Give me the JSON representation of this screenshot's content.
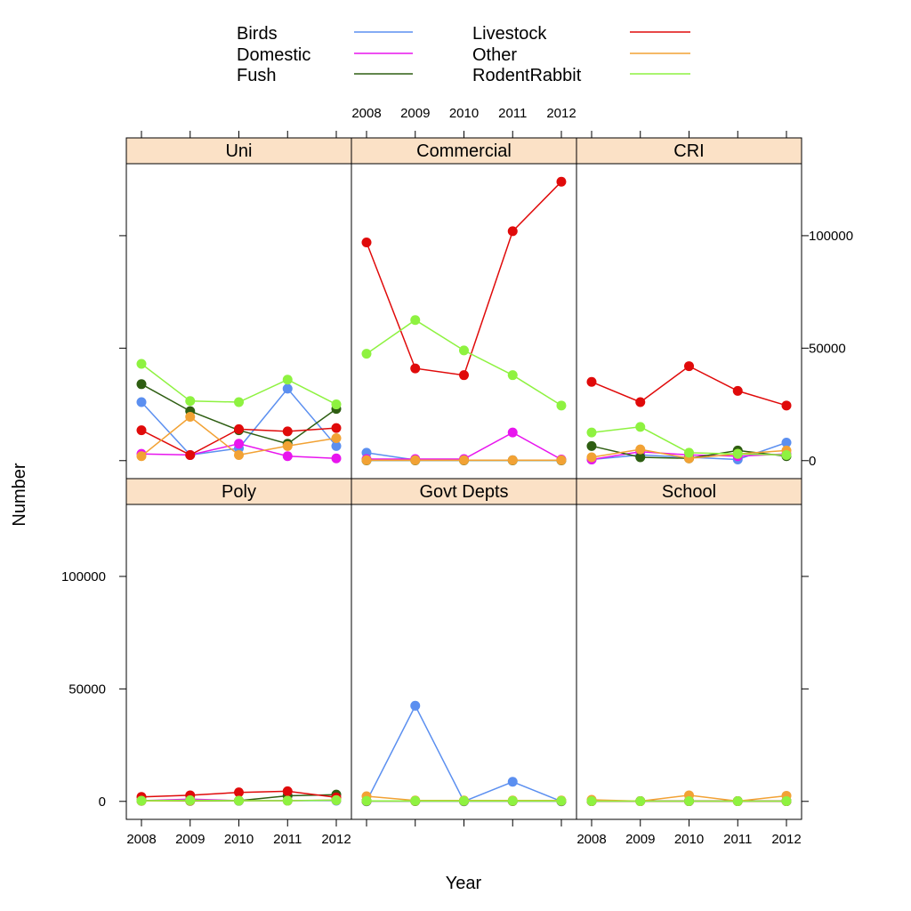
{
  "chart_data": {
    "type": "line",
    "xlabel": "Year",
    "ylabel": "Number",
    "x": [
      2008,
      2009,
      2010,
      2011,
      2012
    ],
    "x_tick_labels": [
      "2008",
      "2009",
      "2010",
      "2011",
      "2012"
    ],
    "ylim": [
      -8000,
      132000
    ],
    "y_ticks": [
      0,
      50000,
      100000
    ],
    "y_tick_labels": [
      "0",
      "50000",
      "100000"
    ],
    "grid": false,
    "legend_position": "top",
    "strip_color": "#fbe1c6",
    "series_colors": {
      "Birds": "#5b8ff0",
      "Domestic": "#e815ee",
      "Fush": "#2e5e12",
      "Livestock": "#e00a0a",
      "Other": "#f2a234",
      "RodentRabbit": "#8ef240"
    },
    "legend": [
      {
        "name": "Birds",
        "color": "#5b8ff0"
      },
      {
        "name": "Domestic",
        "color": "#e815ee"
      },
      {
        "name": "Fush",
        "color": "#2e5e12"
      },
      {
        "name": "Livestock",
        "color": "#e00a0a"
      },
      {
        "name": "Other",
        "color": "#f2a234"
      },
      {
        "name": "RodentRabbit",
        "color": "#8ef240"
      }
    ],
    "panels": [
      {
        "name": "Poly",
        "series": [
          {
            "name": "Birds",
            "values": [
              200,
              300,
              200,
              300,
              300
            ]
          },
          {
            "name": "Domestic",
            "values": [
              300,
              1000,
              300,
              300,
              500
            ]
          },
          {
            "name": "Fush",
            "values": [
              300,
              200,
              300,
              2500,
              3000
            ]
          },
          {
            "name": "Livestock",
            "values": [
              2000,
              2700,
              4000,
              4500,
              1800
            ]
          },
          {
            "name": "Other",
            "values": [
              200,
              300,
              300,
              300,
              600
            ]
          },
          {
            "name": "RodentRabbit",
            "values": [
              300,
              500,
              300,
              300,
              500
            ]
          }
        ]
      },
      {
        "name": "Govt Depts",
        "series": [
          {
            "name": "Birds",
            "values": [
              0,
              42500,
              0,
              8700,
              0
            ]
          },
          {
            "name": "Domestic",
            "values": [
              200,
              200,
              200,
              200,
              200
            ]
          },
          {
            "name": "Fush",
            "values": [
              100,
              100,
              100,
              100,
              100
            ]
          },
          {
            "name": "Livestock",
            "values": [
              200,
              200,
              200,
              200,
              200
            ]
          },
          {
            "name": "Other",
            "values": [
              2300,
              400,
              400,
              400,
              400
            ]
          },
          {
            "name": "RodentRabbit",
            "values": [
              200,
              200,
              200,
              200,
              200
            ]
          }
        ]
      },
      {
        "name": "School",
        "series": [
          {
            "name": "Birds",
            "values": [
              100,
              100,
              100,
              100,
              100
            ]
          },
          {
            "name": "Domestic",
            "values": [
              100,
              100,
              100,
              100,
              100
            ]
          },
          {
            "name": "Fush",
            "values": [
              100,
              100,
              100,
              100,
              100
            ]
          },
          {
            "name": "Livestock",
            "values": [
              100,
              100,
              100,
              100,
              100
            ]
          },
          {
            "name": "Other",
            "values": [
              700,
              100,
              2700,
              100,
              2500
            ]
          },
          {
            "name": "RodentRabbit",
            "values": [
              100,
              100,
              100,
              100,
              100
            ]
          }
        ]
      },
      {
        "name": "Uni",
        "series": [
          {
            "name": "Birds",
            "values": [
              26000,
              2500,
              5500,
              32000,
              6500
            ]
          },
          {
            "name": "Domestic",
            "values": [
              3000,
              2500,
              7500,
              2000,
              1000
            ]
          },
          {
            "name": "Fush",
            "values": [
              34000,
              22000,
              13500,
              7500,
              23000
            ]
          },
          {
            "name": "Livestock",
            "values": [
              13500,
              2500,
              14000,
              13000,
              14500
            ]
          },
          {
            "name": "Other",
            "values": [
              2000,
              19500,
              2500,
              6500,
              10000
            ]
          },
          {
            "name": "RodentRabbit",
            "values": [
              43000,
              26500,
              26000,
              36000,
              25000
            ]
          }
        ]
      },
      {
        "name": "Commercial",
        "series": [
          {
            "name": "Birds",
            "values": [
              3500,
              300,
              200,
              200,
              200
            ]
          },
          {
            "name": "Domestic",
            "values": [
              700,
              700,
              700,
              12500,
              500
            ]
          },
          {
            "name": "Fush",
            "values": [
              100,
              100,
              100,
              100,
              100
            ]
          },
          {
            "name": "Livestock",
            "values": [
              97000,
              41000,
              38000,
              102000,
              124000
            ]
          },
          {
            "name": "Other",
            "values": [
              200,
              200,
              200,
              200,
              200
            ]
          },
          {
            "name": "RodentRabbit",
            "values": [
              47500,
              62500,
              49000,
              38000,
              24500
            ]
          }
        ]
      },
      {
        "name": "CRI",
        "series": [
          {
            "name": "Birds",
            "values": [
              500,
              2500,
              1500,
              500,
              8000
            ]
          },
          {
            "name": "Domestic",
            "values": [
              500,
              4000,
              2500,
              2000,
              3000
            ]
          },
          {
            "name": "Fush",
            "values": [
              6500,
              1500,
              1000,
              4500,
              2000
            ]
          },
          {
            "name": "Livestock",
            "values": [
              35000,
              26000,
              42000,
              31000,
              24500
            ]
          },
          {
            "name": "Other",
            "values": [
              1500,
              5000,
              1000,
              3000,
              4500
            ]
          },
          {
            "name": "RodentRabbit",
            "values": [
              12500,
              15000,
              3500,
              3000,
              2500
            ]
          }
        ]
      }
    ]
  }
}
